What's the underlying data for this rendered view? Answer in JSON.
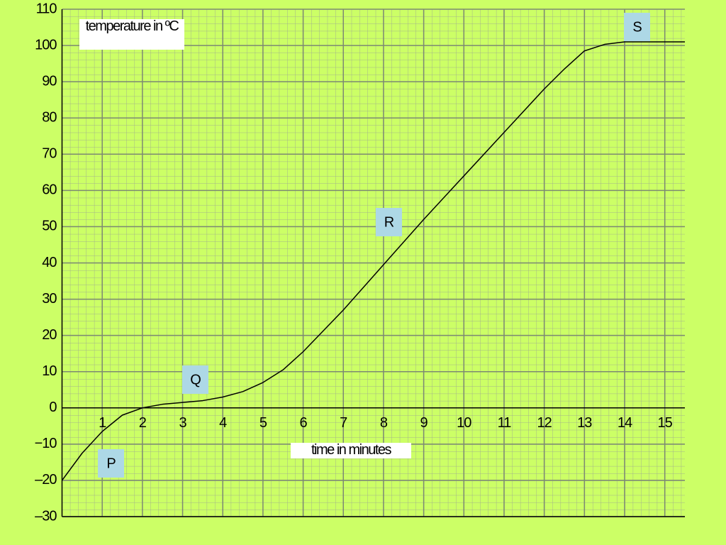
{
  "chart_data": {
    "type": "line",
    "y_label": "temperature in ºC",
    "x_label": "time in minutes",
    "x": [
      0,
      0.5,
      1,
      1.5,
      2,
      2.5,
      3,
      3.5,
      4,
      4.5,
      5,
      5.5,
      6,
      7,
      8,
      9,
      10,
      11,
      12,
      12.5,
      13,
      13.5,
      14,
      15,
      15.5
    ],
    "series": [
      {
        "color": "#000000",
        "values": [
          -20,
          -12.5,
          -6.5,
          -2,
          0,
          1,
          1.5,
          2,
          3,
          4.5,
          7,
          10.5,
          15.5,
          27,
          39.5,
          52,
          64,
          76,
          88,
          93.5,
          98.5,
          100.3,
          101,
          101,
          101
        ]
      }
    ],
    "xlim": [
      0,
      15.5
    ],
    "xticks": [
      1,
      2,
      3,
      4,
      5,
      6,
      7,
      8,
      9,
      10,
      11,
      12,
      13,
      14,
      15
    ],
    "ylim": [
      -30,
      110
    ],
    "yticks": [
      {
        "value": -30,
        "label": "–30"
      },
      {
        "value": -20,
        "label": "–20"
      },
      {
        "value": -10,
        "label": "−10"
      },
      0,
      10,
      20,
      30,
      40,
      50,
      60,
      70,
      80,
      90,
      100,
      110
    ],
    "grid": true,
    "annotations": [
      "P",
      "Q",
      "R",
      "S"
    ]
  }
}
